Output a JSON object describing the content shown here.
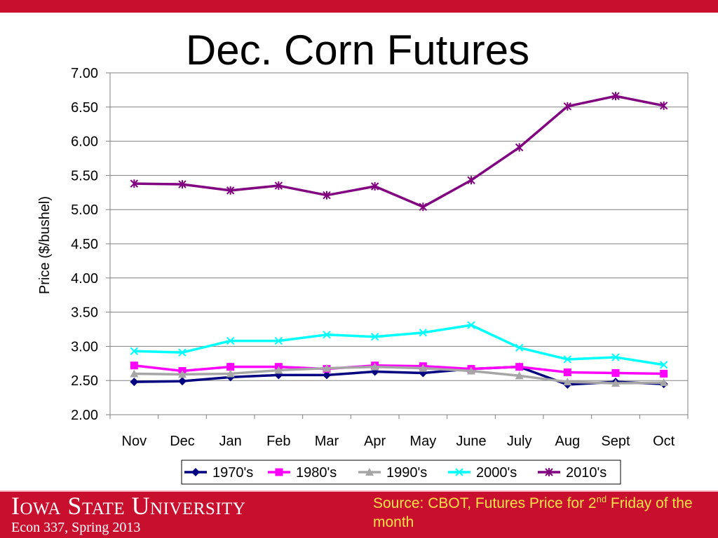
{
  "slide": {
    "title": "Dec. Corn Futures",
    "university": "Iowa State University",
    "course": "Econ 337, Spring 2013",
    "source_prefix": "Source: CBOT, Futures Price for 2",
    "source_superscript": "nd",
    "source_suffix": " Friday of the month"
  },
  "colors": {
    "brand": "#c8102e",
    "source_text": "#ffe24a"
  },
  "chart_data": {
    "type": "line",
    "title": "Dec. Corn Futures",
    "xlabel": "",
    "ylabel": "Price ($/bushel)",
    "ylim": [
      2.0,
      7.0
    ],
    "yticks": [
      "2.00",
      "2.50",
      "3.00",
      "3.50",
      "4.00",
      "4.50",
      "5.00",
      "5.50",
      "6.00",
      "6.50",
      "7.00"
    ],
    "grid": true,
    "legend": "bottom",
    "categories": [
      "Nov",
      "Dec",
      "Jan",
      "Feb",
      "Mar",
      "Apr",
      "May",
      "June",
      "July",
      "Aug",
      "Sept",
      "Oct"
    ],
    "series": [
      {
        "name": "1970's",
        "color": "#000080",
        "marker": "diamond",
        "values": [
          2.48,
          2.49,
          2.55,
          2.58,
          2.58,
          2.63,
          2.61,
          2.67,
          2.7,
          2.44,
          2.48,
          2.45
        ]
      },
      {
        "name": "1980's",
        "color": "#ff00ff",
        "marker": "square",
        "values": [
          2.72,
          2.64,
          2.7,
          2.7,
          2.67,
          2.72,
          2.71,
          2.67,
          2.7,
          2.62,
          2.61,
          2.6
        ]
      },
      {
        "name": "1990's",
        "color": "#a6a6a6",
        "marker": "triangle",
        "values": [
          2.6,
          2.59,
          2.6,
          2.65,
          2.68,
          2.7,
          2.68,
          2.64,
          2.57,
          2.48,
          2.46,
          2.47
        ]
      },
      {
        "name": "2000's",
        "color": "#00ffff",
        "marker": "x",
        "values": [
          2.93,
          2.91,
          3.08,
          3.08,
          3.17,
          3.14,
          3.2,
          3.31,
          2.98,
          2.81,
          2.84,
          2.73
        ]
      },
      {
        "name": "2010's",
        "color": "#800080",
        "marker": "asterisk",
        "values": [
          5.38,
          5.37,
          5.28,
          5.35,
          5.21,
          5.34,
          5.04,
          5.43,
          5.91,
          6.51,
          6.66,
          6.52
        ]
      }
    ]
  }
}
